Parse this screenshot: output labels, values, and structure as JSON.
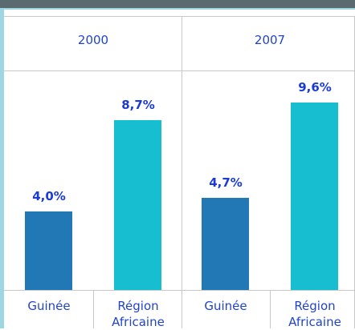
{
  "chart_data": [
    {
      "type": "bar",
      "title": "2000",
      "categories": [
        "Guinée",
        "Région Africaine"
      ],
      "values": [
        4.0,
        8.7
      ],
      "value_labels": [
        "4,0%",
        "8,7%"
      ],
      "colors": [
        "#2277b5",
        "#17becf"
      ]
    },
    {
      "type": "bar",
      "title": "2007",
      "categories": [
        "Guinée",
        "Région Africaine"
      ],
      "values": [
        4.7,
        9.6
      ],
      "value_labels": [
        "4,7%",
        "9,6%"
      ],
      "colors": [
        "#2277b5",
        "#17becf"
      ]
    }
  ]
}
